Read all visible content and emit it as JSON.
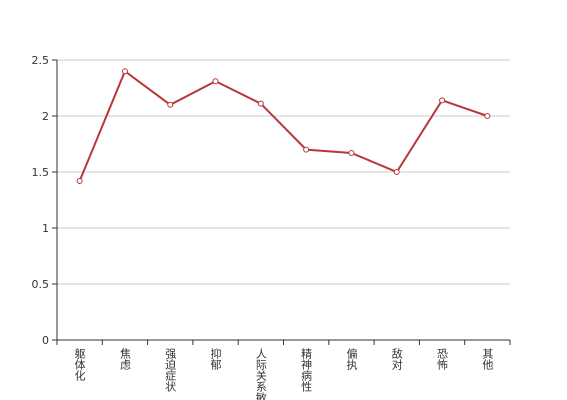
{
  "chart_data": {
    "type": "line",
    "categories": [
      "躯体化",
      "焦虑",
      "强迫症状",
      "抑郁",
      "人际关系敏感",
      "精神病性",
      "偏执",
      "敌对",
      "恐怖",
      "其他"
    ],
    "series": [
      {
        "color": "#b8373a",
        "values": [
          1.42,
          2.4,
          2.1,
          2.31,
          2.11,
          1.7,
          1.67,
          1.5,
          2.14,
          2.0
        ]
      }
    ],
    "ylim": [
      0,
      2.5
    ],
    "yticks": [
      0,
      0.5,
      1,
      1.5,
      2,
      2.5
    ],
    "grid": true
  }
}
